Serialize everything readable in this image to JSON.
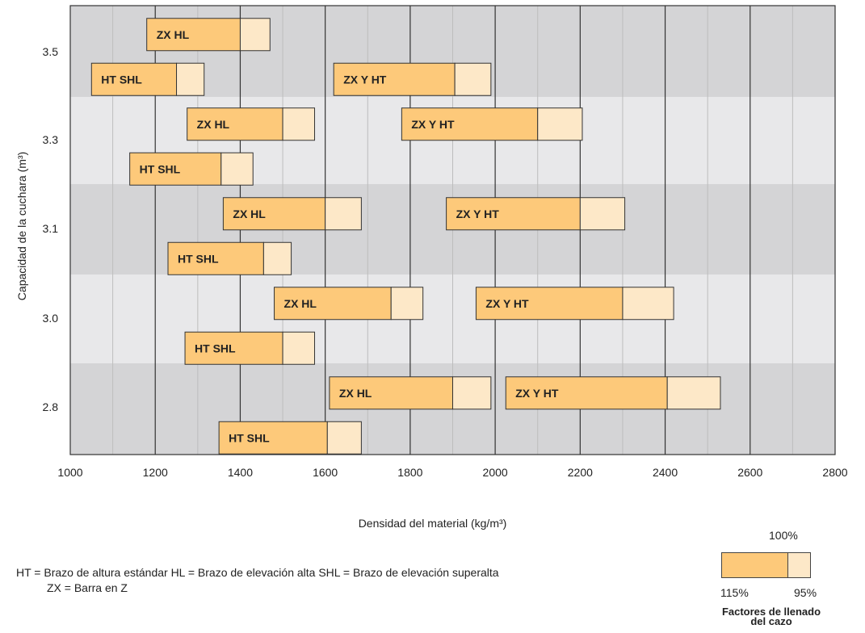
{
  "chart_data": {
    "type": "bar",
    "orientation": "horizontal-range",
    "x_ticks": [
      "1000",
      "1200",
      "1400",
      "1600",
      "1800",
      "2000",
      "2200",
      "2400",
      "2600",
      "2800"
    ],
    "xlim": [
      1000,
      2800
    ],
    "xlabel": "Densidad del material (kg/m³)",
    "ylabel": "Capacidad de la cuchara (m³)",
    "y_ticks": [
      "3.5",
      "3.3",
      "3.1",
      "3.0",
      "2.8"
    ],
    "grid": true,
    "bars": [
      {
        "row": 0,
        "label": "ZX HL",
        "start": 1180,
        "mid": 1400,
        "end": 1470
      },
      {
        "row": 1,
        "label": "HT SHL",
        "start": 1050,
        "mid": 1250,
        "end": 1315
      },
      {
        "row": 1,
        "label": "ZX Y HT",
        "start": 1620,
        "mid": 1905,
        "end": 1990
      },
      {
        "row": 2,
        "label": "ZX HL",
        "start": 1275,
        "mid": 1500,
        "end": 1575
      },
      {
        "row": 2,
        "label": "ZX Y HT",
        "start": 1780,
        "mid": 2100,
        "end": 2205
      },
      {
        "row": 3,
        "label": "HT SHL",
        "start": 1140,
        "mid": 1355,
        "end": 1430
      },
      {
        "row": 4,
        "label": "ZX HL",
        "start": 1360,
        "mid": 1600,
        "end": 1685
      },
      {
        "row": 4,
        "label": "ZX Y HT",
        "start": 1885,
        "mid": 2200,
        "end": 2305
      },
      {
        "row": 5,
        "label": "HT SHL",
        "start": 1230,
        "mid": 1455,
        "end": 1520
      },
      {
        "row": 6,
        "label": "ZX HL",
        "start": 1480,
        "mid": 1755,
        "end": 1830
      },
      {
        "row": 6,
        "label": "ZX Y HT",
        "start": 1955,
        "mid": 2300,
        "end": 2420
      },
      {
        "row": 7,
        "label": "HT SHL",
        "start": 1270,
        "mid": 1500,
        "end": 1575
      },
      {
        "row": 8,
        "label": "ZX HL",
        "start": 1610,
        "mid": 1900,
        "end": 1990
      },
      {
        "row": 8,
        "label": "ZX Y HT",
        "start": 2025,
        "mid": 2405,
        "end": 2530
      },
      {
        "row": 9,
        "label": "HT SHL",
        "start": 1350,
        "mid": 1605,
        "end": 1685
      }
    ],
    "colors": {
      "band_dark": "#d4d4d6",
      "band_light": "#e8e8ea",
      "fill_115_100": "#fdc97a",
      "fill_100_95": "#fde8c8",
      "grid_major": "#333333",
      "grid_minor": "#bdbdbd"
    }
  },
  "legend": {
    "line1": "HT = Brazo de altura estándar    HL = Brazo de elevación alta    SHL = Brazo de elevación superalta",
    "line2": "ZX = Barra en Z",
    "fill_top": "100%",
    "fill_left": "115%",
    "fill_right": "95%",
    "fill_caption_1": "Factores de llenado",
    "fill_caption_2": "del cazo"
  }
}
